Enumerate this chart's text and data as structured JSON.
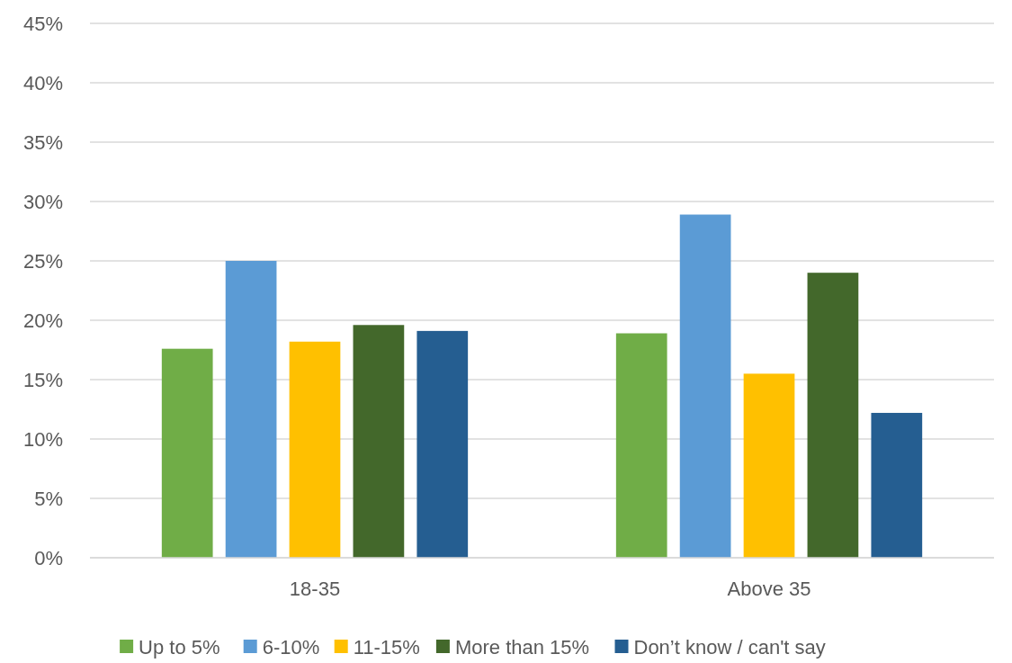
{
  "chart_data": {
    "type": "bar",
    "categories": [
      "18-35",
      "Above 35"
    ],
    "series": [
      {
        "name": "Up to 5%",
        "color": "#70ad47",
        "values": [
          17.6,
          18.9
        ]
      },
      {
        "name": "6-10%",
        "color": "#5b9bd5",
        "values": [
          25,
          28.9
        ]
      },
      {
        "name": "11-15%",
        "color": "#ffc000",
        "values": [
          18.2,
          15.5
        ]
      },
      {
        "name": "More than 15%",
        "color": "#43682b",
        "values": [
          19.6,
          24
        ]
      },
      {
        "name": "Don’t know / can't say",
        "color": "#255e91",
        "values": [
          19.1,
          12.2
        ]
      }
    ],
    "ylim": [
      0,
      45
    ],
    "yticks": [
      {
        "value": 0,
        "label": "0%"
      },
      {
        "value": 5,
        "label": "5%"
      },
      {
        "value": 10,
        "label": "10%"
      },
      {
        "value": 15,
        "label": "15%"
      },
      {
        "value": 20,
        "label": "20%"
      },
      {
        "value": 25,
        "label": "25%"
      },
      {
        "value": 30,
        "label": "30%"
      },
      {
        "value": 35,
        "label": "35%"
      },
      {
        "value": 40,
        "label": "40%"
      },
      {
        "value": 45,
        "label": "45%"
      }
    ],
    "grid": "y",
    "legend": "bottom"
  }
}
